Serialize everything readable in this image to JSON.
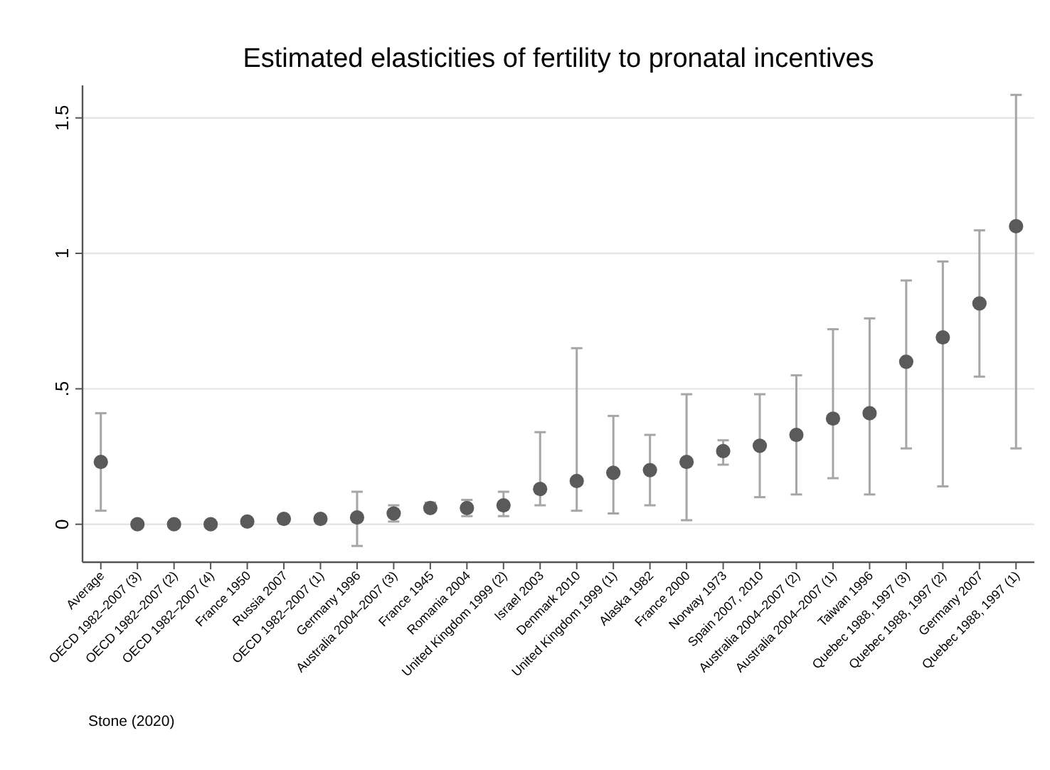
{
  "chart_data": {
    "type": "scatter",
    "title": "Estimated elasticities of fertility to pronatal incentives",
    "categories": [
      "Average",
      "OECD 1982–2007 (3)",
      "OECD 1982–2007 (2)",
      "OECD 1982–2007 (4)",
      "France 1950",
      "Russia 2007",
      "OECD 1982–2007 (1)",
      "Germany 1996",
      "Australia 2004–2007 (3)",
      "France 1945",
      "Romania 2004",
      "United Kingdom 1999 (2)",
      "Israel 2003",
      "Denmark 2010",
      "United Kingdom 1999 (1)",
      "Alaska 1982",
      "France 2000",
      "Norway 1973",
      "Spain 2007, 2010",
      "Australia 2004–2007 (2)",
      "Australia 2004–2007 (1)",
      "Taiwan 1996",
      "Quebec 1988, 1997 (3)",
      "Quebec 1988, 1997 (2)",
      "Germany 2007",
      "Quebec 1988, 1997 (1)"
    ],
    "series": [
      {
        "color": "#5a5a5a",
        "values": [
          0.23,
          0,
          0,
          0,
          0.01,
          0.02,
          0.02,
          0.025,
          0.04,
          0.06,
          0.06,
          0.07,
          0.13,
          0.16,
          0.19,
          0.2,
          0.23,
          0.27,
          0.29,
          0.33,
          0.39,
          0.41,
          0.6,
          0.69,
          0.815,
          1.1
        ],
        "errors": [
          [
            0.05,
            0.41
          ],
          null,
          null,
          null,
          null,
          [
            0.01,
            0.03
          ],
          [
            0.01,
            0.03
          ],
          [
            -0.08,
            0.12
          ],
          [
            0.01,
            0.07
          ],
          [
            0.05,
            0.08
          ],
          [
            0.03,
            0.09
          ],
          [
            0.03,
            0.12
          ],
          [
            0.07,
            0.34
          ],
          [
            0.05,
            0.65
          ],
          [
            0.04,
            0.4
          ],
          [
            0.07,
            0.33
          ],
          [
            0.015,
            0.48
          ],
          [
            0.22,
            0.31
          ],
          [
            0.1,
            0.48
          ],
          [
            0.11,
            0.55
          ],
          [
            0.17,
            0.72
          ],
          [
            0.11,
            0.76
          ],
          [
            0.28,
            0.9
          ],
          [
            0.14,
            0.97
          ],
          [
            0.545,
            1.085
          ],
          [
            0.28,
            1.585
          ]
        ]
      }
    ],
    "ylim": [
      -0.14,
      1.62
    ],
    "yticks": [
      0,
      {
        "value": 0.5,
        "label": ".5"
      },
      1,
      1.5
    ],
    "grid": "y",
    "marker": "circle",
    "annotations": [
      "Stone (2020)"
    ]
  }
}
